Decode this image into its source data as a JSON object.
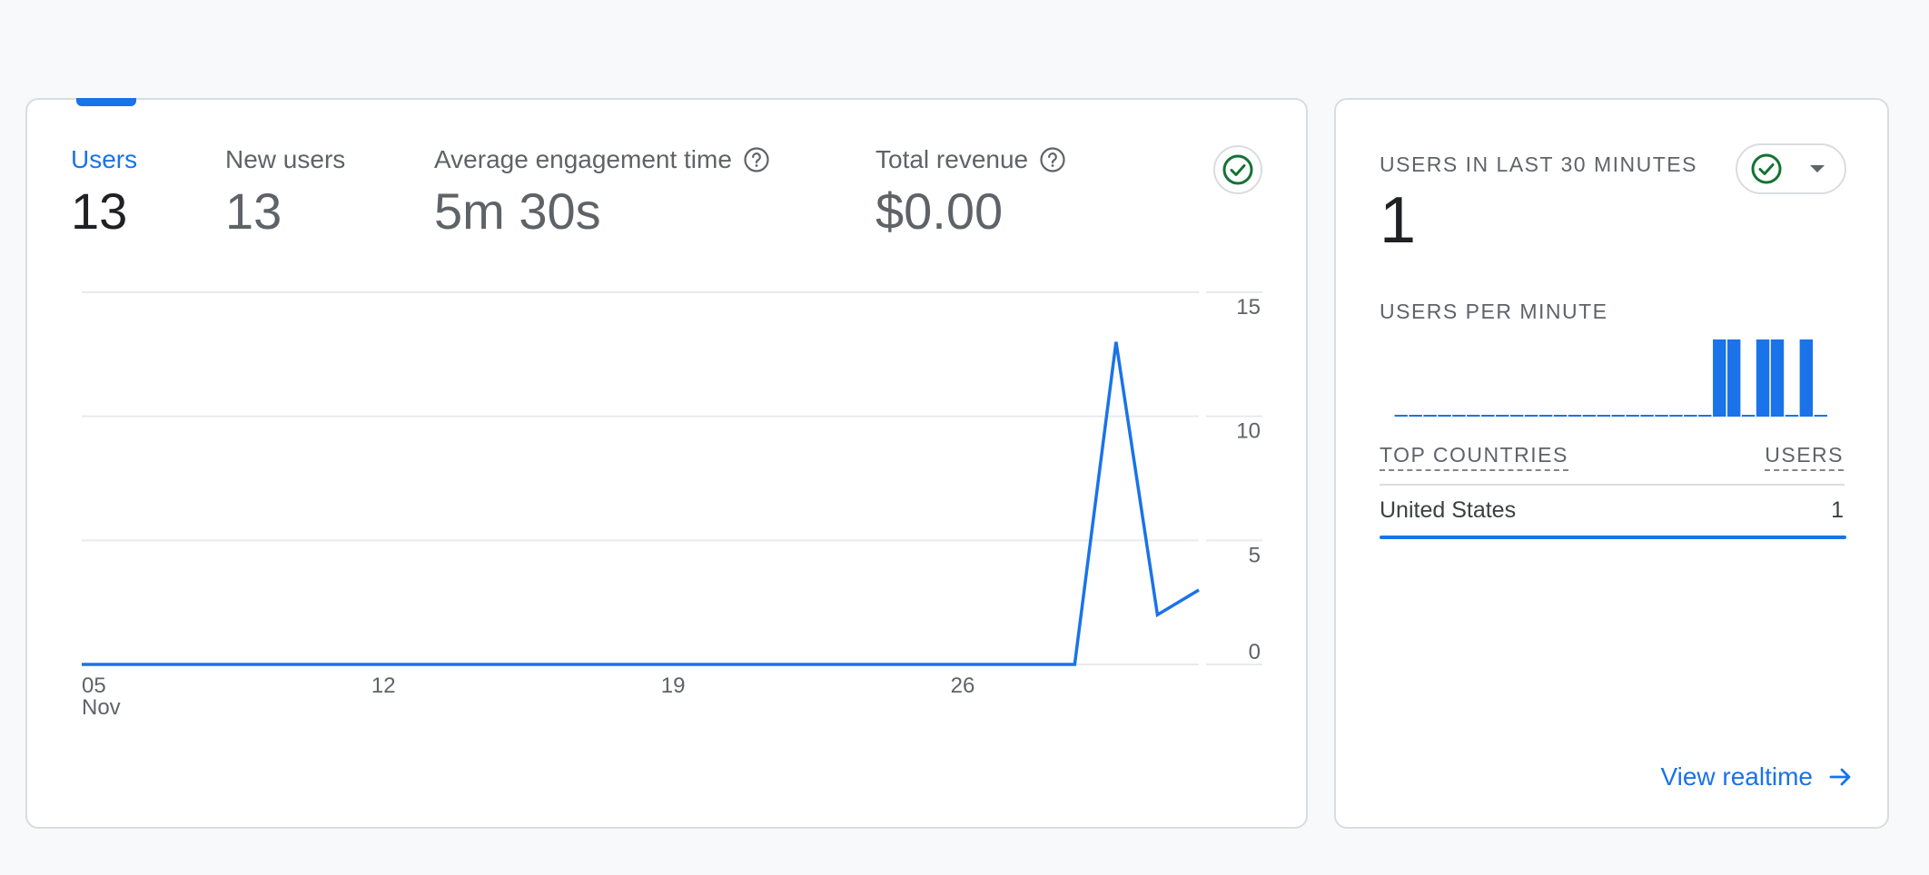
{
  "metrics": [
    {
      "label": "Users",
      "value": "13"
    },
    {
      "label": "New users",
      "value": "13"
    },
    {
      "label": "Average engagement time",
      "value": "5m 30s"
    },
    {
      "label": "Total revenue",
      "value": "$0.00"
    }
  ],
  "icons": {
    "help": "help-circle-icon",
    "check": "check-circle-icon",
    "dropdown": "chevron-down-icon",
    "arrow": "arrow-right-icon"
  },
  "colors": {
    "accent": "#1a73e8",
    "success": "#137333",
    "text": "#202124",
    "muted": "#5f6368"
  },
  "chart_data": {
    "type": "line",
    "x_ticks": [
      "05",
      "12",
      "19",
      "26"
    ],
    "x_sublabel": "Nov",
    "y_ticks": [
      15,
      10,
      5,
      0
    ],
    "ylim": [
      0,
      15
    ],
    "grid": true,
    "series": [
      {
        "x": [
          "Nov 05",
          "Nov 06",
          "Nov 07",
          "Nov 08",
          "Nov 09",
          "Nov 10",
          "Nov 11",
          "Nov 12",
          "Nov 13",
          "Nov 14",
          "Nov 15",
          "Nov 16",
          "Nov 17",
          "Nov 18",
          "Nov 19",
          "Nov 20",
          "Nov 21",
          "Nov 22",
          "Nov 23",
          "Nov 24",
          "Nov 25",
          "Nov 26",
          "Nov 27",
          "Nov 28",
          "Nov 29",
          "Nov 30",
          "Dec 01",
          "Dec 02"
        ],
        "values": [
          0,
          0,
          0,
          0,
          0,
          0,
          0,
          0,
          0,
          0,
          0,
          0,
          0,
          0,
          0,
          0,
          0,
          0,
          0,
          0,
          0,
          0,
          0,
          0,
          0,
          13,
          2,
          3
        ]
      }
    ]
  },
  "realtime": {
    "title": "USERS IN LAST 30 MINUTES",
    "count": "1",
    "per_minute_label": "USERS PER MINUTE",
    "per_minute": [
      0,
      0,
      0,
      0,
      0,
      0,
      0,
      0,
      0,
      0,
      0,
      0,
      0,
      0,
      0,
      0,
      0,
      0,
      0,
      0,
      0,
      0,
      1,
      1,
      0,
      1,
      1,
      0,
      1,
      0
    ],
    "table_header_left": "TOP COUNTRIES",
    "table_header_right": "USERS",
    "rows": [
      {
        "country": "United States",
        "users": "1"
      }
    ],
    "link_label": "View realtime"
  }
}
